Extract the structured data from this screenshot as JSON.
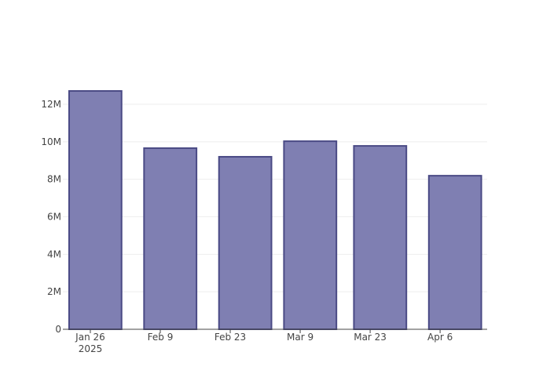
{
  "chart_data": {
    "type": "bar",
    "x": [
      "2025-01-27",
      "2025-02-11",
      "2025-02-26",
      "2025-03-11",
      "2025-03-25",
      "2025-04-09"
    ],
    "values": [
      12710000,
      9660000,
      9200000,
      10030000,
      9780000,
      8190000
    ],
    "color": "#7f7fb2",
    "line_color": "#4a4a85",
    "xlim": [
      "2025-01-20T12:00",
      "2025-04-15T10:00"
    ],
    "xticks": [
      {
        "value": "2025-01-26",
        "label": "Jan 26",
        "year_label": "2025"
      },
      {
        "value": "2025-02-09",
        "label": "Feb 9"
      },
      {
        "value": "2025-02-23",
        "label": "Feb 23"
      },
      {
        "value": "2025-03-09",
        "label": "Mar 9"
      },
      {
        "value": "2025-03-23",
        "label": "Mar 23"
      },
      {
        "value": "2025-04-06",
        "label": "Apr 6"
      }
    ],
    "ylim": [
      0,
      13380000
    ],
    "yticks": [
      0,
      {
        "value": 2000000,
        "label": "2M"
      },
      {
        "value": 4000000,
        "label": "4M"
      },
      {
        "value": 6000000,
        "label": "6M"
      },
      {
        "value": 8000000,
        "label": "8M"
      },
      {
        "value": 10000000,
        "label": "10M"
      },
      {
        "value": 12000000,
        "label": "12M"
      }
    ],
    "grid": true
  }
}
